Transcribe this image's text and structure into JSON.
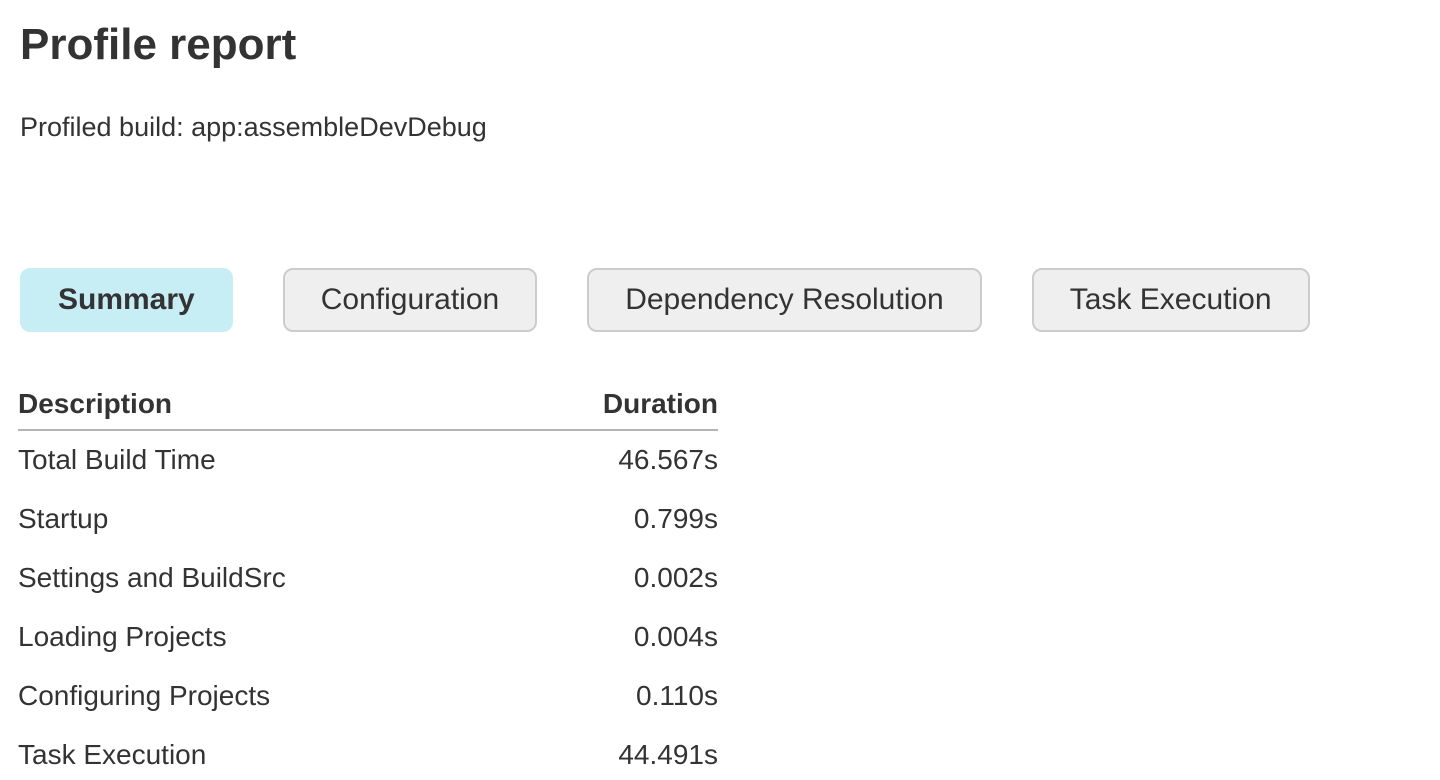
{
  "page": {
    "title": "Profile report",
    "subtitle": "Profiled build: app:assembleDevDebug"
  },
  "tabs": [
    {
      "label": "Summary",
      "active": true
    },
    {
      "label": "Configuration",
      "active": false
    },
    {
      "label": "Dependency Resolution",
      "active": false
    },
    {
      "label": "Task Execution",
      "active": false
    }
  ],
  "summary_table": {
    "columns": {
      "description": "Description",
      "duration": "Duration"
    },
    "rows": [
      {
        "description": "Total Build Time",
        "duration": "46.567s"
      },
      {
        "description": "Startup",
        "duration": "0.799s"
      },
      {
        "description": "Settings and BuildSrc",
        "duration": "0.002s"
      },
      {
        "description": "Loading Projects",
        "duration": "0.004s"
      },
      {
        "description": "Configuring Projects",
        "duration": "0.110s"
      },
      {
        "description": "Task Execution",
        "duration": "44.491s"
      }
    ]
  },
  "colors": {
    "text": "#333333",
    "active_tab_bg": "#c8eef5",
    "inactive_tab_bg": "#efefef",
    "tab_border": "#cccccc",
    "header_border": "#b4b4b4",
    "table_bottom_border": "#cccccc"
  }
}
